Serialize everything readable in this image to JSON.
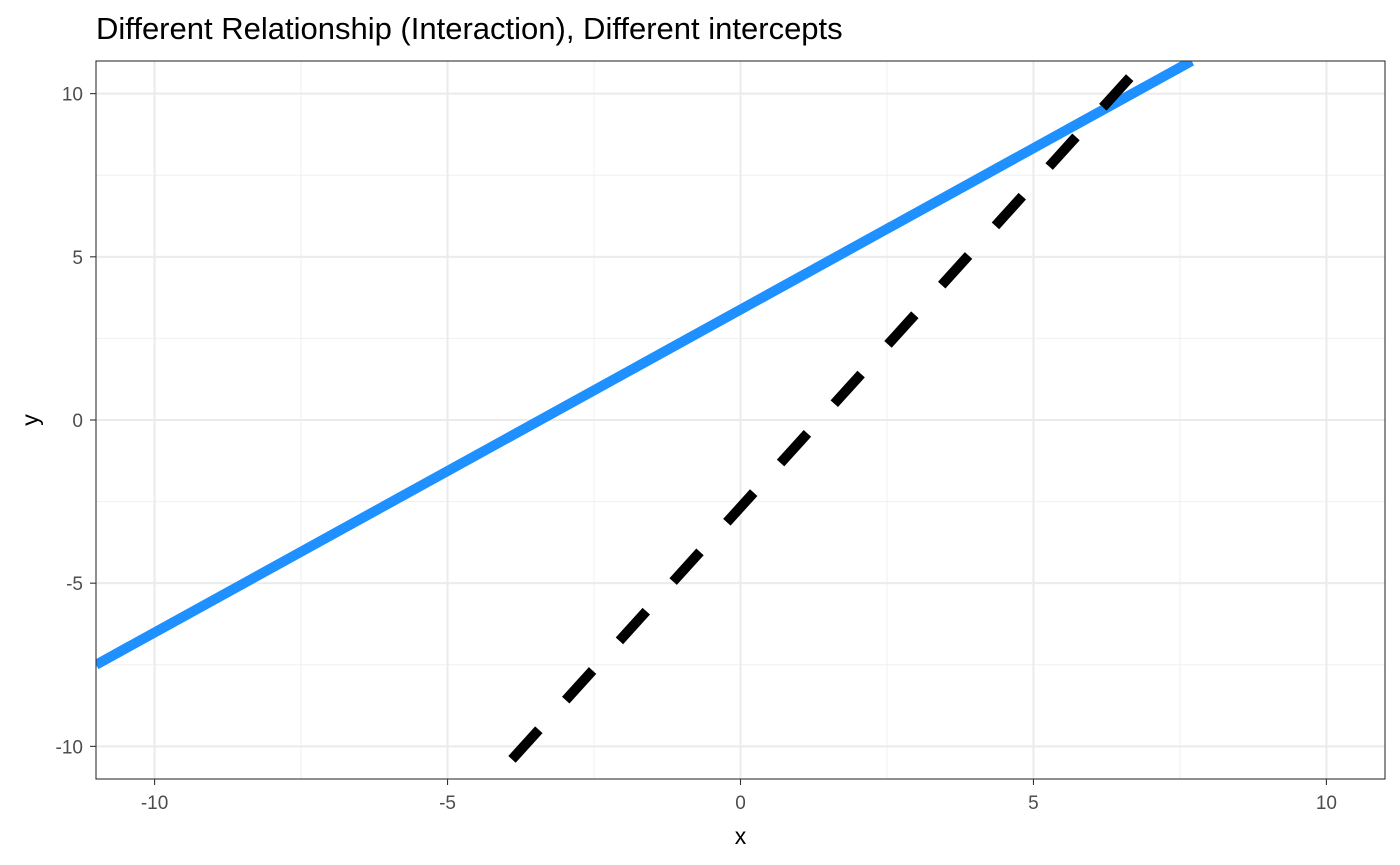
{
  "chart_data": {
    "type": "line",
    "title": "Different Relationship (Interaction), Different intercepts",
    "xlabel": "x",
    "ylabel": "y",
    "xlim": [
      -11,
      11
    ],
    "ylim": [
      -11,
      11
    ],
    "xticks": [
      -10,
      -5,
      0,
      5,
      10
    ],
    "yticks": [
      -10,
      -5,
      0,
      5,
      10
    ],
    "xtick_labels": [
      "-10",
      "-5",
      "0",
      "5",
      "10"
    ],
    "ytick_labels": [
      "-10",
      "-5",
      "0",
      "5",
      "10"
    ],
    "grid": true,
    "legend": "none",
    "series": [
      {
        "x": [
          -11,
          7.7
        ],
        "y": [
          -7.5,
          11
        ],
        "color": "#1e90ff",
        "style": "solid"
      },
      {
        "x": [
          -3.9,
          6.9
        ],
        "y": [
          -10.4,
          11
        ],
        "color": "#000000",
        "style": "dashed"
      }
    ]
  }
}
